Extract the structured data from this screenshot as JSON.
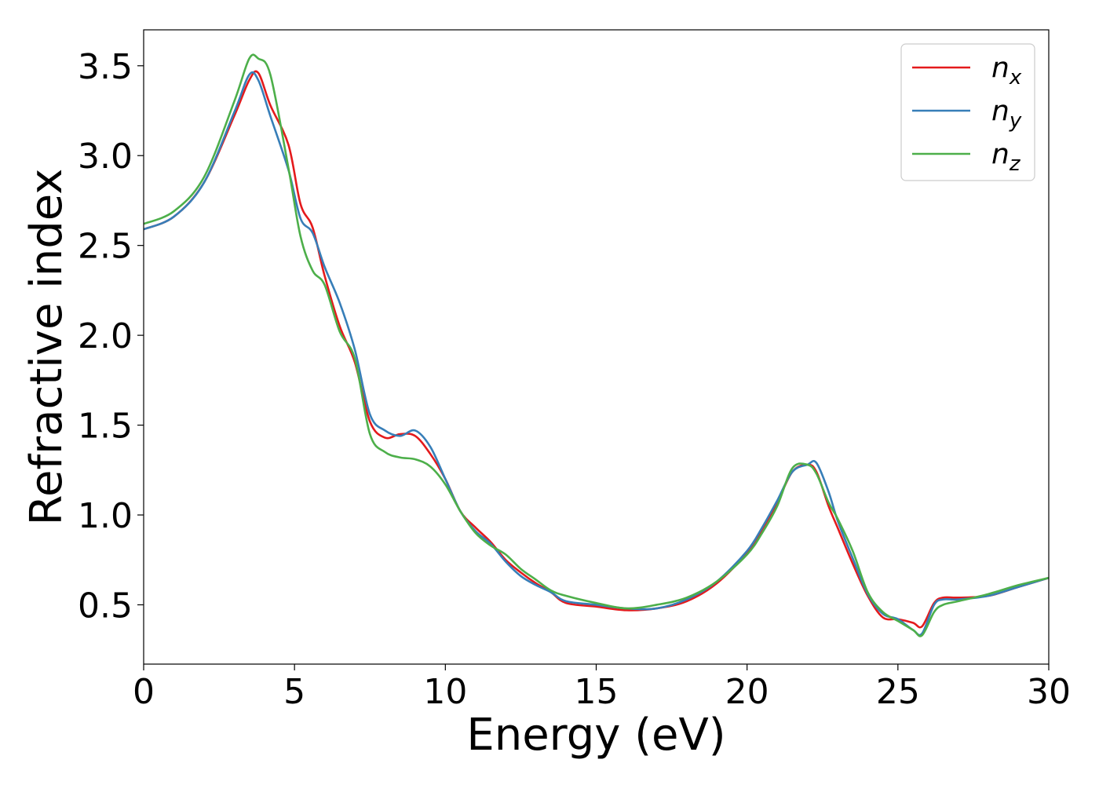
{
  "chart_data": {
    "type": "line",
    "title": "",
    "xlabel": "Energy (eV)",
    "ylabel": "Refractive index",
    "xlim": [
      0,
      30
    ],
    "ylim": [
      0.17,
      3.7
    ],
    "xticks": [
      0,
      5,
      10,
      15,
      20,
      25,
      30
    ],
    "xtick_labels": [
      "0",
      "5",
      "10",
      "15",
      "20",
      "25",
      "30"
    ],
    "yticks": [
      0.5,
      1.0,
      1.5,
      2.0,
      2.5,
      3.0,
      3.5
    ],
    "ytick_labels": [
      "0.5",
      "1.0",
      "1.5",
      "2.0",
      "2.5",
      "3.0",
      "3.5"
    ],
    "grid": false,
    "legend_position": "top-right",
    "series": [
      {
        "name": "n_x",
        "label_base": "n",
        "label_sub": "x",
        "color": "#e41a1c",
        "x": [
          0,
          1,
          2,
          3,
          3.5,
          3.8,
          4.2,
          4.8,
          5.2,
          5.6,
          6.0,
          6.5,
          7.0,
          7.5,
          8.0,
          8.5,
          9.0,
          9.5,
          10.0,
          10.5,
          11.0,
          11.5,
          12.0,
          12.5,
          13.0,
          13.5,
          14.0,
          15.0,
          16.0,
          17.0,
          18.0,
          19.0,
          20.0,
          20.5,
          21.0,
          21.5,
          22.0,
          22.3,
          22.7,
          23.0,
          23.5,
          24.0,
          24.5,
          25.0,
          25.5,
          25.8,
          26.2,
          26.5,
          27.0,
          28.0,
          29.0,
          30.0
        ],
        "y": [
          2.59,
          2.66,
          2.85,
          3.22,
          3.42,
          3.46,
          3.28,
          3.06,
          2.73,
          2.6,
          2.33,
          2.05,
          1.85,
          1.52,
          1.43,
          1.45,
          1.44,
          1.34,
          1.2,
          1.02,
          0.93,
          0.85,
          0.75,
          0.68,
          0.62,
          0.57,
          0.51,
          0.49,
          0.47,
          0.48,
          0.52,
          0.62,
          0.79,
          0.92,
          1.07,
          1.24,
          1.28,
          1.24,
          1.05,
          0.93,
          0.73,
          0.55,
          0.43,
          0.42,
          0.4,
          0.38,
          0.51,
          0.54,
          0.54,
          0.55,
          0.6,
          0.65
        ]
      },
      {
        "name": "n_y",
        "label_base": "n",
        "label_sub": "y",
        "color": "#377eb8",
        "x": [
          0,
          1,
          2,
          3,
          3.5,
          3.8,
          4.2,
          4.8,
          5.2,
          5.6,
          6.0,
          6.5,
          7.0,
          7.5,
          8.0,
          8.5,
          9.0,
          9.5,
          10.0,
          10.5,
          11.0,
          11.5,
          12.0,
          12.5,
          13.0,
          13.5,
          14.0,
          15.0,
          16.0,
          17.0,
          18.0,
          19.0,
          20.0,
          20.5,
          21.0,
          21.5,
          22.0,
          22.3,
          22.7,
          23.0,
          23.5,
          24.0,
          24.5,
          25.0,
          25.5,
          25.8,
          26.2,
          26.5,
          27.0,
          28.0,
          29.0,
          30.0
        ],
        "y": [
          2.59,
          2.66,
          2.85,
          3.24,
          3.45,
          3.42,
          3.22,
          2.92,
          2.65,
          2.57,
          2.38,
          2.18,
          1.92,
          1.56,
          1.47,
          1.44,
          1.47,
          1.38,
          1.2,
          1.02,
          0.91,
          0.84,
          0.74,
          0.66,
          0.61,
          0.57,
          0.52,
          0.5,
          0.48,
          0.48,
          0.53,
          0.63,
          0.8,
          0.93,
          1.08,
          1.24,
          1.28,
          1.29,
          1.13,
          0.97,
          0.76,
          0.56,
          0.45,
          0.42,
          0.36,
          0.34,
          0.5,
          0.53,
          0.53,
          0.55,
          0.6,
          0.65
        ]
      },
      {
        "name": "n_z",
        "label_base": "n",
        "label_sub": "z",
        "color": "#4daf4a",
        "x": [
          0,
          1,
          2,
          3,
          3.5,
          3.8,
          4.2,
          4.8,
          5.2,
          5.6,
          6.0,
          6.5,
          7.0,
          7.5,
          8.0,
          8.5,
          9.0,
          9.5,
          10.0,
          10.5,
          11.0,
          11.5,
          12.0,
          12.5,
          13.0,
          13.5,
          14.0,
          15.0,
          16.0,
          17.0,
          18.0,
          19.0,
          20.0,
          20.5,
          21.0,
          21.5,
          22.0,
          22.3,
          22.7,
          23.0,
          23.5,
          24.0,
          24.5,
          25.0,
          25.5,
          25.8,
          26.2,
          26.5,
          27.0,
          28.0,
          29.0,
          30.0
        ],
        "y": [
          2.62,
          2.69,
          2.88,
          3.3,
          3.54,
          3.54,
          3.45,
          2.93,
          2.55,
          2.36,
          2.28,
          2.02,
          1.87,
          1.45,
          1.35,
          1.32,
          1.31,
          1.27,
          1.17,
          1.02,
          0.9,
          0.83,
          0.78,
          0.7,
          0.64,
          0.58,
          0.55,
          0.51,
          0.48,
          0.5,
          0.54,
          0.63,
          0.78,
          0.9,
          1.05,
          1.26,
          1.28,
          1.23,
          1.07,
          0.98,
          0.8,
          0.57,
          0.46,
          0.41,
          0.36,
          0.33,
          0.46,
          0.5,
          0.52,
          0.56,
          0.61,
          0.65
        ]
      }
    ]
  }
}
